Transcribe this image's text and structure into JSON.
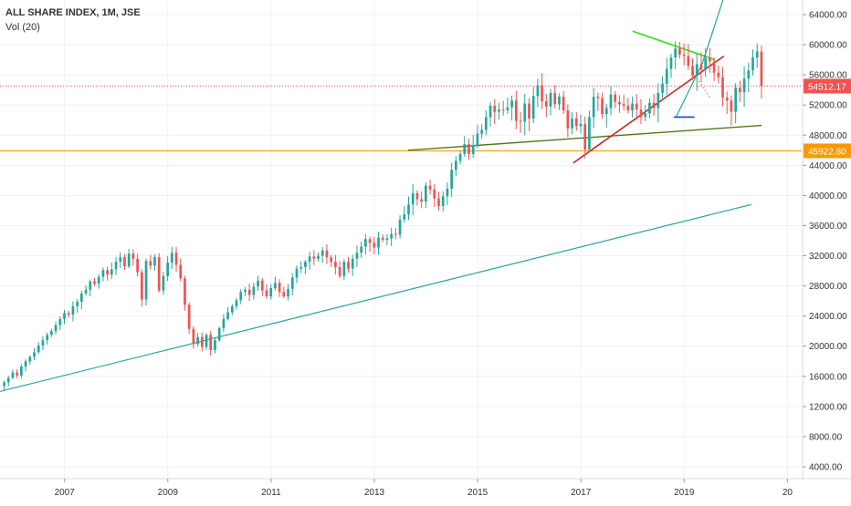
{
  "legend": {
    "title": "ALL SHARE INDEX, 1M, JSE",
    "indicator": "Vol (20)"
  },
  "price_labels": {
    "current": "54512.17",
    "support": "45922.80"
  },
  "colors": {
    "up": "#26a69a",
    "down": "#ef5350",
    "grid": "#eef1f5",
    "current_line": "#ef5350",
    "support_line": "#ff9800",
    "long_trend": "#26a69a",
    "green_trend": "#4c7a1c",
    "red_trend": "#c62828",
    "lime_trend": "#44dd22",
    "blue_line": "#1e3fd1"
  },
  "chart_data": {
    "type": "candlestick",
    "title": "ALL SHARE INDEX, 1M, JSE",
    "x_ticks": [
      "2007",
      "2009",
      "2011",
      "2013",
      "2015",
      "2017",
      "2019",
      "20"
    ],
    "y_ticks": [
      4000,
      8000,
      12000,
      16000,
      20000,
      24000,
      28000,
      32000,
      36000,
      40000,
      44000,
      48000,
      52000,
      56000,
      60000,
      64000
    ],
    "ylim": [
      2500,
      67000
    ],
    "xlim": [
      2005.75,
      2020.2
    ],
    "current_price": 54512.17,
    "support_level": 45922.8,
    "series": [
      {
        "name": "ALL SHARE INDEX",
        "close": [
          15200,
          15800,
          16500,
          16100,
          17300,
          18000,
          18600,
          19200,
          20100,
          20800,
          21500,
          22000,
          22800,
          23600,
          24400,
          24200,
          25300,
          25900,
          27000,
          27500,
          28600,
          28300,
          29200,
          30100,
          29500,
          30200,
          31200,
          31800,
          30600,
          32300,
          31600,
          29800,
          26200,
          31300,
          30700,
          31800,
          27400,
          29300,
          31100,
          32400,
          30800,
          29000,
          25500,
          22300,
          20300,
          21200,
          19900,
          21500,
          19500,
          20800,
          22400,
          23600,
          24500,
          25300,
          26100,
          27200,
          27500,
          26800,
          27900,
          28700,
          27400,
          26600,
          27700,
          28400,
          27200,
          26600,
          27600,
          29100,
          30300,
          30500,
          31200,
          31900,
          31600,
          32000,
          32700,
          31800,
          31200,
          30500,
          29300,
          31200,
          30300,
          31600,
          32400,
          33200,
          34200,
          33700,
          33100,
          34400,
          34100,
          34300,
          34900,
          34800,
          36800,
          37500,
          38800,
          40300,
          39500,
          39200,
          41300,
          40800,
          39600,
          38600,
          39900,
          40900,
          43400,
          44600,
          45500,
          46800,
          45500,
          46700,
          48200,
          48700,
          50400,
          51900,
          51100,
          51400,
          51300,
          51700,
          52600,
          49900,
          49800,
          52200,
          50200,
          53200,
          54600,
          52500,
          51800,
          53600,
          52100,
          53100,
          51300,
          48900,
          50200,
          49200,
          49500,
          46100,
          50400,
          53100,
          52900,
          50800,
          51600,
          53400,
          52400,
          52100,
          51900,
          51300,
          52200,
          51400,
          50400,
          50900,
          52300,
          51600,
          53600,
          54800,
          56800,
          58300,
          59500,
          58700,
          58500,
          57200,
          55900,
          57400,
          56700,
          58200,
          57800,
          56300,
          55700,
          53000,
          52600,
          51100,
          54300,
          53700,
          55500,
          56600,
          58300,
          59100,
          54500
        ]
      }
    ],
    "annotations": [
      "horizontal line at 54512.17",
      "horizontal line at 45922.80",
      "ascending trendlines",
      "descending trendline",
      "projection arrow"
    ]
  }
}
